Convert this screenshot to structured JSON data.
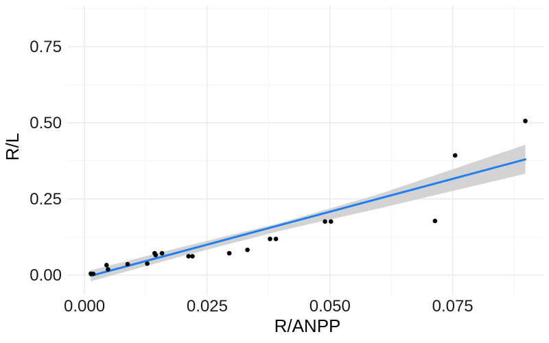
{
  "chart_data": {
    "type": "scatter",
    "xlabel": "R/ANPP",
    "ylabel": "R/L",
    "xlim": [
      -0.0035,
      0.0935
    ],
    "ylim": [
      -0.065,
      0.885
    ],
    "x_ticks": [
      0.0,
      0.025,
      0.05,
      0.075
    ],
    "x_tick_labels": [
      "0.000",
      "0.025",
      "0.050",
      "0.075"
    ],
    "x_minor_ticks": [
      0.0125,
      0.0375,
      0.0625,
      0.0875
    ],
    "y_ticks": [
      0.0,
      0.25,
      0.5,
      0.75
    ],
    "y_tick_labels": [
      "0.00",
      "0.25",
      "0.50",
      "0.75"
    ],
    "y_minor_ticks": [
      0.125,
      0.375,
      0.625,
      0.875
    ],
    "grid": true,
    "points": [
      {
        "x": 0.0013,
        "y": 0.005
      },
      {
        "x": 0.0018,
        "y": 0.004
      },
      {
        "x": 0.0045,
        "y": 0.033
      },
      {
        "x": 0.0048,
        "y": 0.019
      },
      {
        "x": 0.0088,
        "y": 0.036
      },
      {
        "x": 0.0128,
        "y": 0.038
      },
      {
        "x": 0.0143,
        "y": 0.072
      },
      {
        "x": 0.0145,
        "y": 0.066
      },
      {
        "x": 0.0158,
        "y": 0.072
      },
      {
        "x": 0.0212,
        "y": 0.062
      },
      {
        "x": 0.022,
        "y": 0.062
      },
      {
        "x": 0.0295,
        "y": 0.072
      },
      {
        "x": 0.0332,
        "y": 0.083
      },
      {
        "x": 0.0378,
        "y": 0.119
      },
      {
        "x": 0.039,
        "y": 0.119
      },
      {
        "x": 0.049,
        "y": 0.176
      },
      {
        "x": 0.0502,
        "y": 0.176
      },
      {
        "x": 0.0714,
        "y": 0.178
      },
      {
        "x": 0.0755,
        "y": 0.393
      },
      {
        "x": 0.0898,
        "y": 0.506
      }
    ],
    "fit_line": {
      "method": "linear",
      "color": "#1f7ef0",
      "points": [
        {
          "x": 0.0013,
          "y": -0.002
        },
        {
          "x": 0.0898,
          "y": 0.38
        }
      ],
      "confidence_band": {
        "color": "#d3d3d3",
        "upper": [
          {
            "x": 0.0013,
            "y": 0.016
          },
          {
            "x": 0.02,
            "y": 0.093
          },
          {
            "x": 0.04,
            "y": 0.172
          },
          {
            "x": 0.06,
            "y": 0.266
          },
          {
            "x": 0.0898,
            "y": 0.428
          }
        ],
        "lower": [
          {
            "x": 0.0013,
            "y": -0.02
          },
          {
            "x": 0.02,
            "y": 0.063
          },
          {
            "x": 0.04,
            "y": 0.146
          },
          {
            "x": 0.06,
            "y": 0.219
          },
          {
            "x": 0.0898,
            "y": 0.333
          }
        ]
      }
    },
    "colors": {
      "point": "#000000",
      "grid_major": "#ebebeb",
      "grid_minor": "#f5f5f5"
    }
  }
}
